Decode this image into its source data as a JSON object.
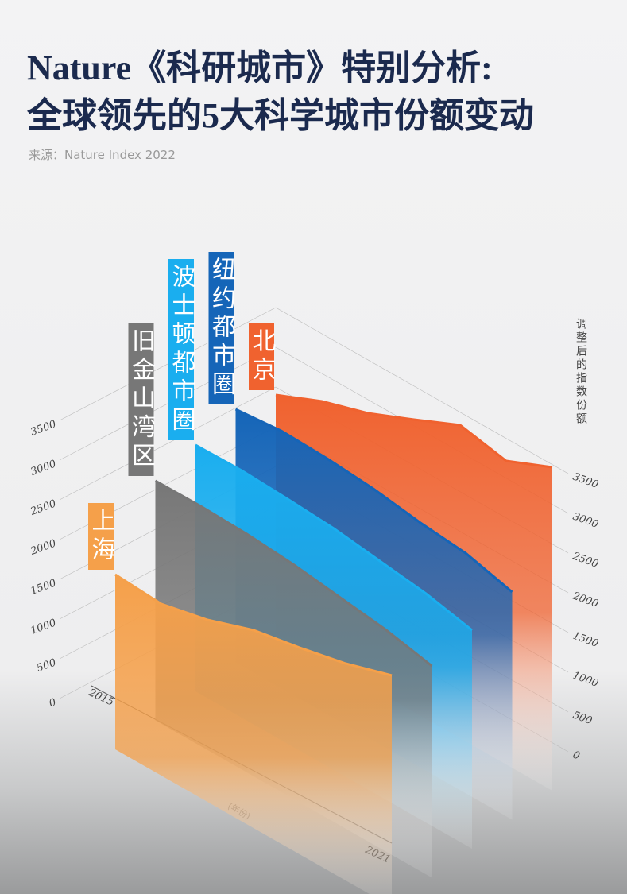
{
  "chart_data": {
    "type": "area3d",
    "title": "Nature《科研城市》特别分析:",
    "subtitle": "全球领先的5大科学城市份额变动",
    "source": "来源：Nature Index 2022",
    "y_label": "调整后的指数份额",
    "x_label": "(年份)",
    "categories": [
      "2015",
      null,
      null,
      null,
      null,
      null,
      "2021"
    ],
    "series": [
      {
        "name": "上海",
        "color": "#f5a04a",
        "values": [
          1600,
          1560,
          1690,
          1890,
          2000,
          2130,
          2310
        ]
      },
      {
        "name": "旧金山湾区",
        "color": "#777777",
        "values": [
          2415,
          2420,
          2400,
          2350,
          2270,
          2190,
          2065
        ]
      },
      {
        "name": "波士顿都市圈",
        "color": "#1aaeef",
        "values": [
          2500,
          2510,
          2480,
          2440,
          2360,
          2280,
          2150
        ]
      },
      {
        "name": "纽约都市圈",
        "color": "#1565b8",
        "values": [
          2585,
          2640,
          2620,
          2570,
          2480,
          2420,
          2265
        ]
      },
      {
        "name": "北京",
        "color": "#f0622f",
        "values": [
          2400,
          2650,
          2830,
          3080,
          3340,
          3220,
          3470
        ]
      }
    ],
    "ylim": [
      0,
      3500
    ],
    "yticks": [
      0,
      500,
      1000,
      1500,
      2000,
      2500,
      3000,
      3500
    ],
    "grid": true
  }
}
